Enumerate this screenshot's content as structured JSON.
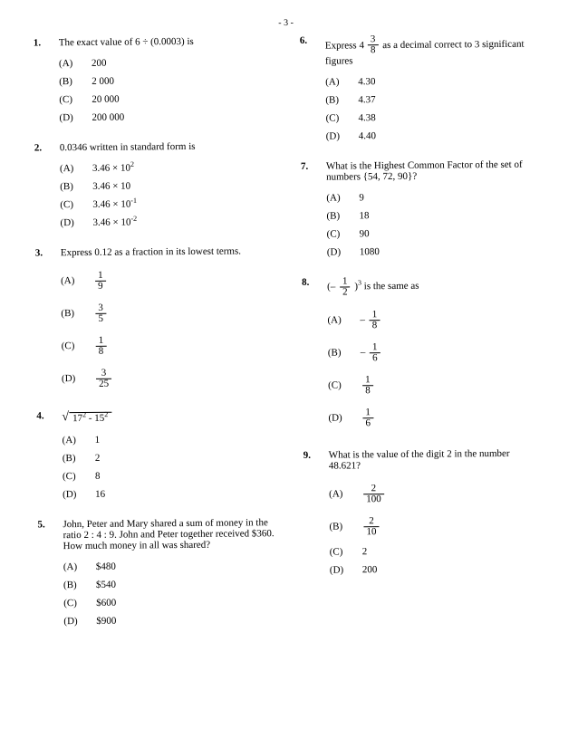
{
  "page_label": "- 3 -",
  "questions_left": [
    {
      "number": "1.",
      "stem": "The exact value of 6 ÷ (0.0003) is",
      "options": [
        {
          "letter": "(A)",
          "value": "200"
        },
        {
          "letter": "(B)",
          "value": "2 000"
        },
        {
          "letter": "(C)",
          "value": "20 000"
        },
        {
          "letter": "(D)",
          "value": "200 000"
        }
      ]
    },
    {
      "number": "2.",
      "stem": "0.0346 written in standard form is",
      "options": [
        {
          "letter": "(A)",
          "value": "3.46 × 10²"
        },
        {
          "letter": "(B)",
          "value": "3.46 × 10"
        },
        {
          "letter": "(C)",
          "value": "3.46 × 10⁻¹"
        },
        {
          "letter": "(D)",
          "value": "3.46 × 10⁻²"
        }
      ]
    },
    {
      "number": "3.",
      "stem": "Express 0.12 as a fraction in its lowest terms.",
      "options": [
        {
          "letter": "(A)",
          "frac_num": "1",
          "frac_den": "9",
          "tall": true
        },
        {
          "letter": "(B)",
          "frac_num": "3",
          "frac_den": "5",
          "tall": true
        },
        {
          "letter": "(C)",
          "frac_num": "1",
          "frac_den": "8",
          "tall": true
        },
        {
          "letter": "(D)",
          "frac_num": "3",
          "frac_den": "25",
          "tall": true
        }
      ]
    },
    {
      "number": "4.",
      "stem_sqrt": {
        "inside": "17² - 15²"
      },
      "options": [
        {
          "letter": "(A)",
          "value": "1"
        },
        {
          "letter": "(B)",
          "value": "2"
        },
        {
          "letter": "(C)",
          "value": "8"
        },
        {
          "letter": "(D)",
          "value": "16"
        }
      ]
    },
    {
      "number": "5.",
      "stem": "John, Peter and Mary shared a sum of money in the ratio 2 : 4 : 9. John and Peter together received $360. How much money in all was shared?",
      "options": [
        {
          "letter": "(A)",
          "value": "$480"
        },
        {
          "letter": "(B)",
          "value": "$540"
        },
        {
          "letter": "(C)",
          "value": "$600"
        },
        {
          "letter": "(D)",
          "value": "$900"
        }
      ]
    }
  ],
  "questions_right": [
    {
      "number": "6.",
      "stem_mixed": {
        "prefix": "Express ",
        "whole": "4",
        "num": "3",
        "den": "8",
        "suffix": " as a decimal correct to 3 significant figures"
      },
      "options": [
        {
          "letter": "(A)",
          "value": "4.30"
        },
        {
          "letter": "(B)",
          "value": "4.37"
        },
        {
          "letter": "(C)",
          "value": "4.38"
        },
        {
          "letter": "(D)",
          "value": "4.40"
        }
      ]
    },
    {
      "number": "7.",
      "stem": "What is the Highest Common Factor of the set of numbers {54, 72, 90}?",
      "options": [
        {
          "letter": "(A)",
          "value": "9"
        },
        {
          "letter": "(B)",
          "value": "18"
        },
        {
          "letter": "(C)",
          "value": "90"
        },
        {
          "letter": "(D)",
          "value": "1080"
        }
      ]
    },
    {
      "number": "8.",
      "stem_expr": {
        "prefix": "(– ",
        "num": "1",
        "den": "2",
        "suffix": ")³ is the same as"
      },
      "options": [
        {
          "letter": "(A)",
          "neg": true,
          "frac_num": "1",
          "frac_den": "8",
          "tall": true
        },
        {
          "letter": "(B)",
          "neg": true,
          "frac_num": "1",
          "frac_den": "6",
          "tall": true
        },
        {
          "letter": "(C)",
          "frac_num": "1",
          "frac_den": "8",
          "tall": true
        },
        {
          "letter": "(D)",
          "frac_num": "1",
          "frac_den": "6",
          "tall": true
        }
      ]
    },
    {
      "number": "9.",
      "stem": "What is the value of the digit 2 in the number 48.621?",
      "options": [
        {
          "letter": "(A)",
          "frac_num": "2",
          "frac_den": "100",
          "tall": true
        },
        {
          "letter": "(B)",
          "frac_num": "2",
          "frac_den": "10",
          "tall": true
        },
        {
          "letter": "(C)",
          "value": "2"
        },
        {
          "letter": "(D)",
          "value": "200"
        }
      ]
    }
  ]
}
